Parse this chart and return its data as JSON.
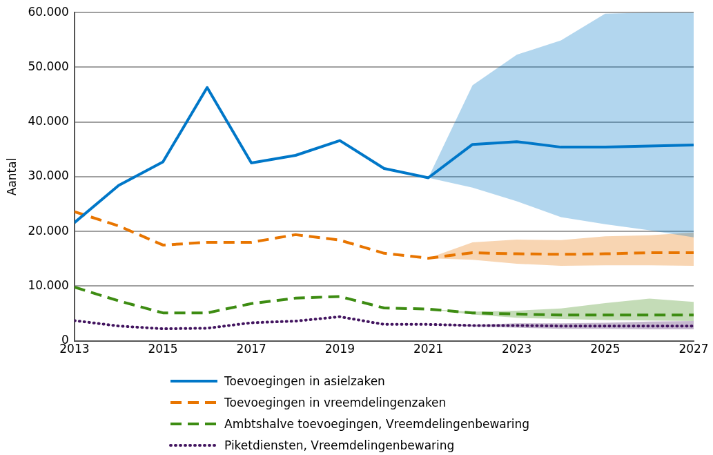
{
  "chart_data": {
    "type": "line",
    "ylabel": "Aantal",
    "x": [
      2013,
      2014,
      2015,
      2016,
      2017,
      2018,
      2019,
      2020,
      2021,
      2022,
      2023,
      2024,
      2025,
      2026,
      2027
    ],
    "xlim": [
      2013,
      2027
    ],
    "xticks": [
      2013,
      2015,
      2017,
      2019,
      2021,
      2023,
      2025,
      2027
    ],
    "ylim": [
      0,
      60000
    ],
    "yticks": [
      {
        "value": 0,
        "label": "0"
      },
      {
        "value": 10000,
        "label": "10.000"
      },
      {
        "value": 20000,
        "label": "20.000"
      },
      {
        "value": 30000,
        "label": "30.000"
      },
      {
        "value": 40000,
        "label": "40.000"
      },
      {
        "value": 50000,
        "label": "50.000"
      },
      {
        "value": 60000,
        "label": "60.000"
      }
    ],
    "grid": "y",
    "legend": "bottom",
    "marker": "none",
    "series": [
      {
        "name": "Toevoegingen in asielzaken",
        "color": "#0077c8",
        "line_style": "solid",
        "values": [
          21600,
          28400,
          32700,
          46300,
          32500,
          33900,
          36600,
          31500,
          29800,
          35900,
          36400,
          35400,
          35400,
          35600,
          35800
        ],
        "lower": [
          null,
          null,
          null,
          null,
          null,
          null,
          null,
          null,
          29800,
          28000,
          25500,
          22600,
          21300,
          20200,
          18900
        ],
        "upper": [
          null,
          null,
          null,
          null,
          null,
          null,
          null,
          null,
          29800,
          46700,
          52300,
          54900,
          59800,
          60000,
          60000
        ]
      },
      {
        "name": "Toevoegingen in vreemdelingenzaken",
        "color": "#e87500",
        "line_style": "dashed",
        "values": [
          23600,
          21000,
          17500,
          18000,
          18000,
          19400,
          18400,
          16000,
          15100,
          16100,
          15900,
          15800,
          15900,
          16100,
          16100
        ],
        "lower": [
          null,
          null,
          null,
          null,
          null,
          null,
          null,
          null,
          15100,
          14800,
          14100,
          13700,
          13800,
          13800,
          13700
        ],
        "upper": [
          null,
          null,
          null,
          null,
          null,
          null,
          null,
          null,
          15100,
          18000,
          18500,
          18400,
          19100,
          19300,
          19800
        ]
      },
      {
        "name": "Ambtshalve toevoegingen, Vreemdelingenbewaring",
        "color": "#3d8c12",
        "line_style": "dashed",
        "values": [
          9800,
          7300,
          5100,
          5100,
          6800,
          7800,
          8100,
          6000,
          5800,
          5100,
          4900,
          4700,
          4700,
          4700,
          4700
        ],
        "lower": [
          null,
          null,
          null,
          null,
          null,
          null,
          null,
          null,
          5800,
          4800,
          4200,
          4000,
          3800,
          3700,
          3600
        ],
        "upper": [
          null,
          null,
          null,
          null,
          null,
          null,
          null,
          null,
          5800,
          5300,
          5500,
          5900,
          6900,
          7700,
          7100
        ]
      },
      {
        "name": "Piketdiensten, Vreemdelingenbewaring",
        "color": "#42145f",
        "line_style": "dotted",
        "values": [
          3700,
          2700,
          2200,
          2300,
          3300,
          3600,
          4400,
          3000,
          3000,
          2800,
          2800,
          2700,
          2700,
          2700,
          2700
        ],
        "lower": [
          null,
          null,
          null,
          null,
          null,
          null,
          null,
          null,
          3000,
          2600,
          2400,
          2200,
          2200,
          2100,
          2100
        ],
        "upper": [
          null,
          null,
          null,
          null,
          null,
          null,
          null,
          null,
          3000,
          2900,
          3200,
          3200,
          3300,
          3500,
          3600
        ]
      }
    ]
  }
}
